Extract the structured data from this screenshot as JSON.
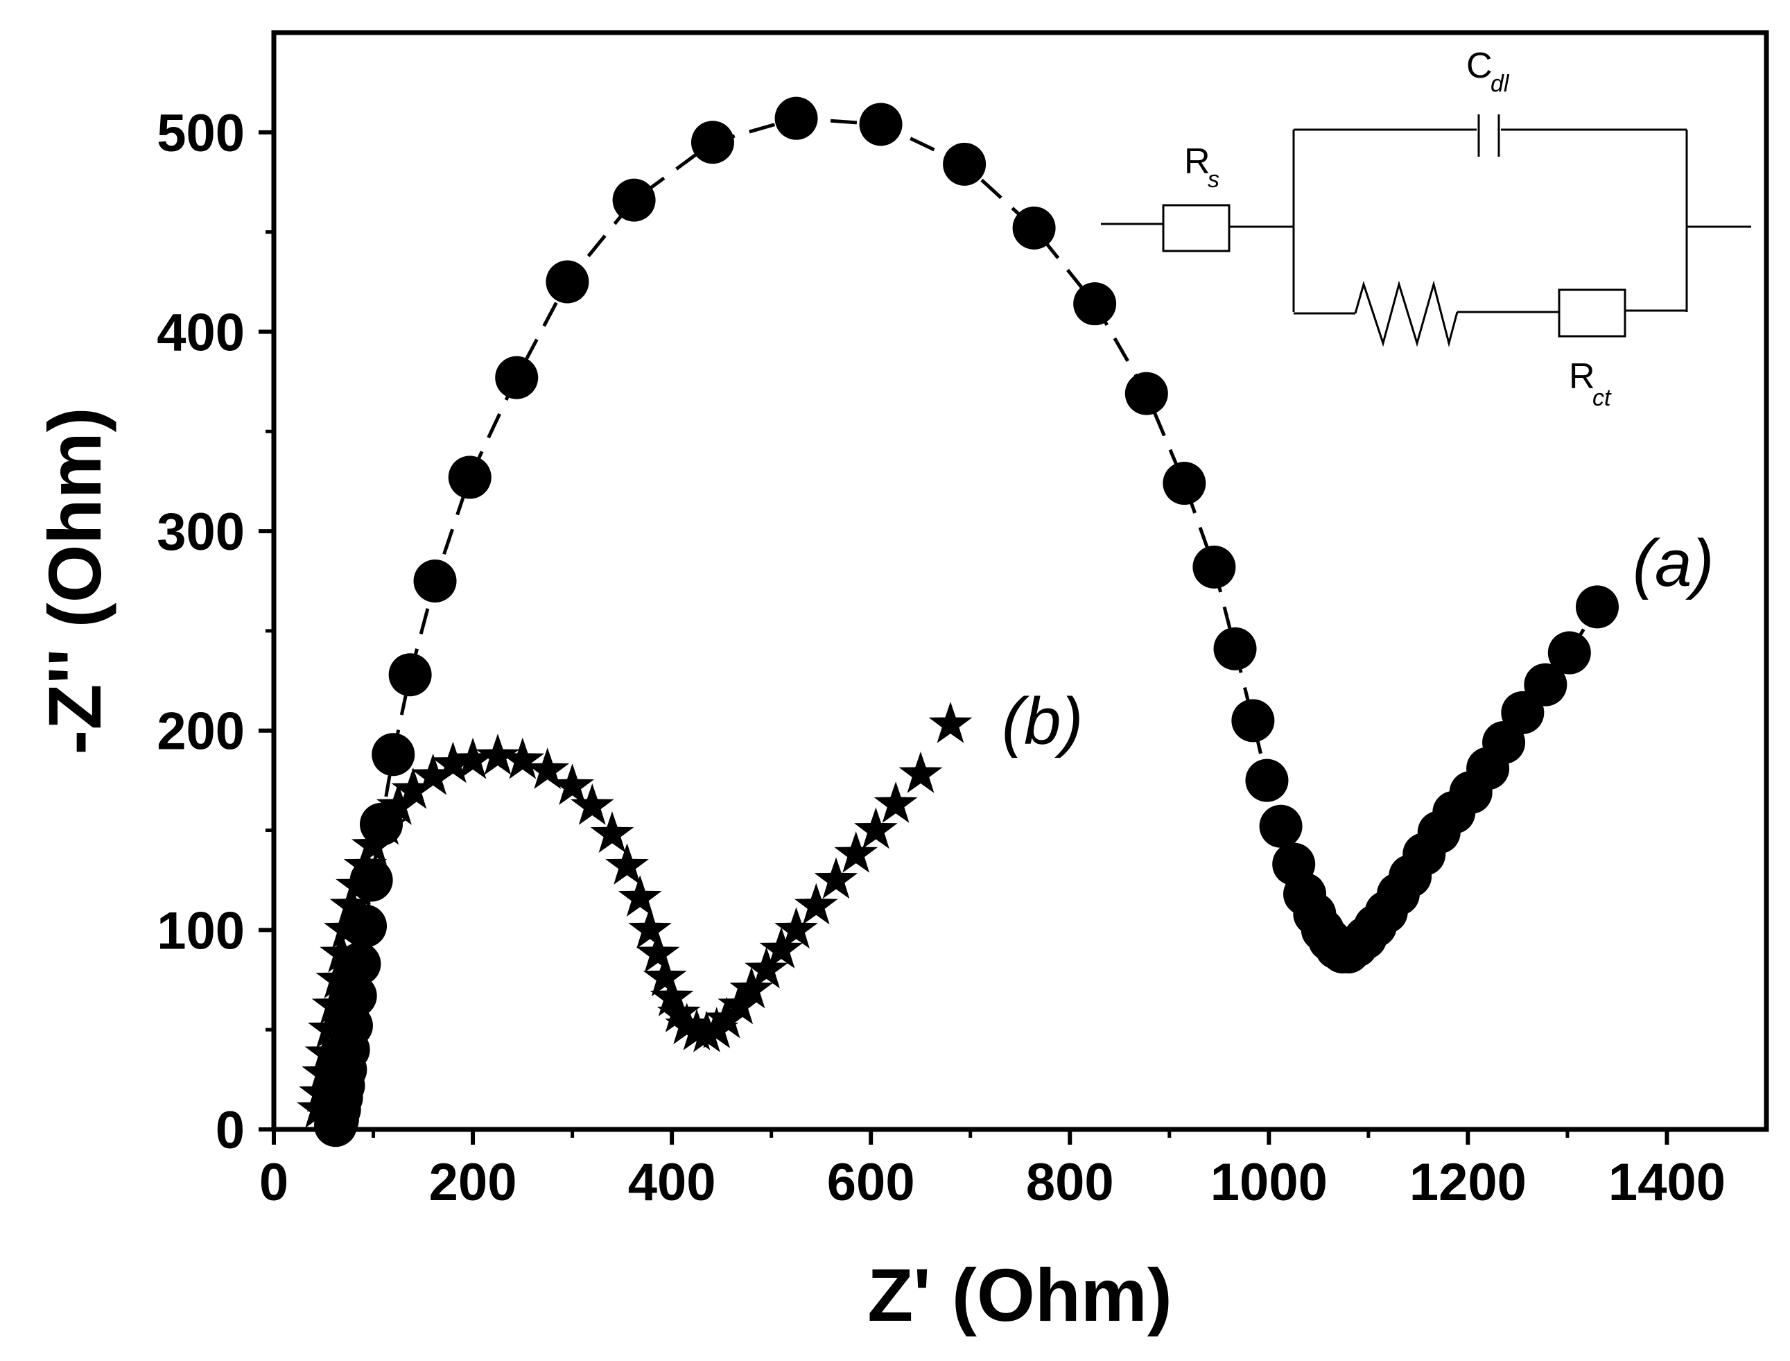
{
  "chart_data": {
    "type": "scatter",
    "title": "",
    "xlabel": "Z' (Ohm)",
    "ylabel": "-Z'' (Ohm)",
    "xlim": [
      0,
      1500
    ],
    "ylim": [
      0,
      550
    ],
    "xticks": [
      0,
      200,
      400,
      600,
      800,
      1000,
      1200,
      1400
    ],
    "yticks": [
      0,
      100,
      200,
      300,
      400,
      500
    ],
    "grid": false,
    "series": [
      {
        "name": "(a)",
        "marker": "circle",
        "line": "dashed",
        "x": [
          62,
          64,
          66,
          68,
          70,
          72,
          75,
          78,
          82,
          86,
          92,
          98,
          108,
          120,
          137,
          162,
          197,
          244,
          295,
          362,
          441,
          525,
          610,
          694,
          764,
          825,
          877,
          915,
          945,
          966,
          984,
          998,
          1012,
          1025,
          1036,
          1046,
          1054,
          1061,
          1068,
          1074,
          1080,
          1088,
          1097,
          1107,
          1118,
          1130,
          1142,
          1156,
          1171,
          1186,
          1203,
          1220,
          1236,
          1255,
          1278,
          1302,
          1330
        ],
        "y": [
          2,
          5,
          10,
          16,
          22,
          30,
          40,
          52,
          67,
          83,
          102,
          125,
          153,
          188,
          228,
          275,
          327,
          377,
          425,
          466,
          495,
          507,
          504,
          484,
          452,
          414,
          369,
          324,
          282,
          241,
          205,
          175,
          152,
          133,
          118,
          108,
          100,
          95,
          91,
          89,
          89,
          92,
          96,
          102,
          109,
          118,
          127,
          138,
          149,
          159,
          169,
          181,
          194,
          209,
          223,
          239,
          262
        ]
      },
      {
        "name": "(b)",
        "marker": "star",
        "line": "none",
        "x": [
          45,
          47,
          50,
          53,
          56,
          60,
          64,
          68,
          72,
          78,
          84,
          92,
          100,
          112,
          125,
          140,
          160,
          180,
          200,
          225,
          250,
          275,
          300,
          320,
          340,
          355,
          368,
          378,
          386,
          393,
          400,
          407,
          415,
          425,
          435,
          445,
          455,
          468,
          480,
          495,
          510,
          525,
          545,
          565,
          585,
          605,
          625,
          650,
          680
        ],
        "y": [
          10,
          18,
          28,
          38,
          50,
          62,
          75,
          88,
          100,
          112,
          122,
          132,
          142,
          152,
          162,
          170,
          177,
          183,
          185,
          187,
          185,
          180,
          172,
          162,
          148,
          132,
          116,
          100,
          88,
          76,
          66,
          58,
          52,
          49,
          48,
          50,
          55,
          62,
          70,
          80,
          90,
          100,
          112,
          125,
          138,
          150,
          163,
          178,
          203
        ]
      }
    ],
    "annotations": {
      "series_a_label": "(a)",
      "series_b_label": "(b)"
    },
    "circuit_inset": {
      "rs_label": "R",
      "rs_sub": "s",
      "cdl_label": "C",
      "cdl_sub": "dl",
      "rct_label": "R",
      "rct_sub": "ct"
    }
  }
}
